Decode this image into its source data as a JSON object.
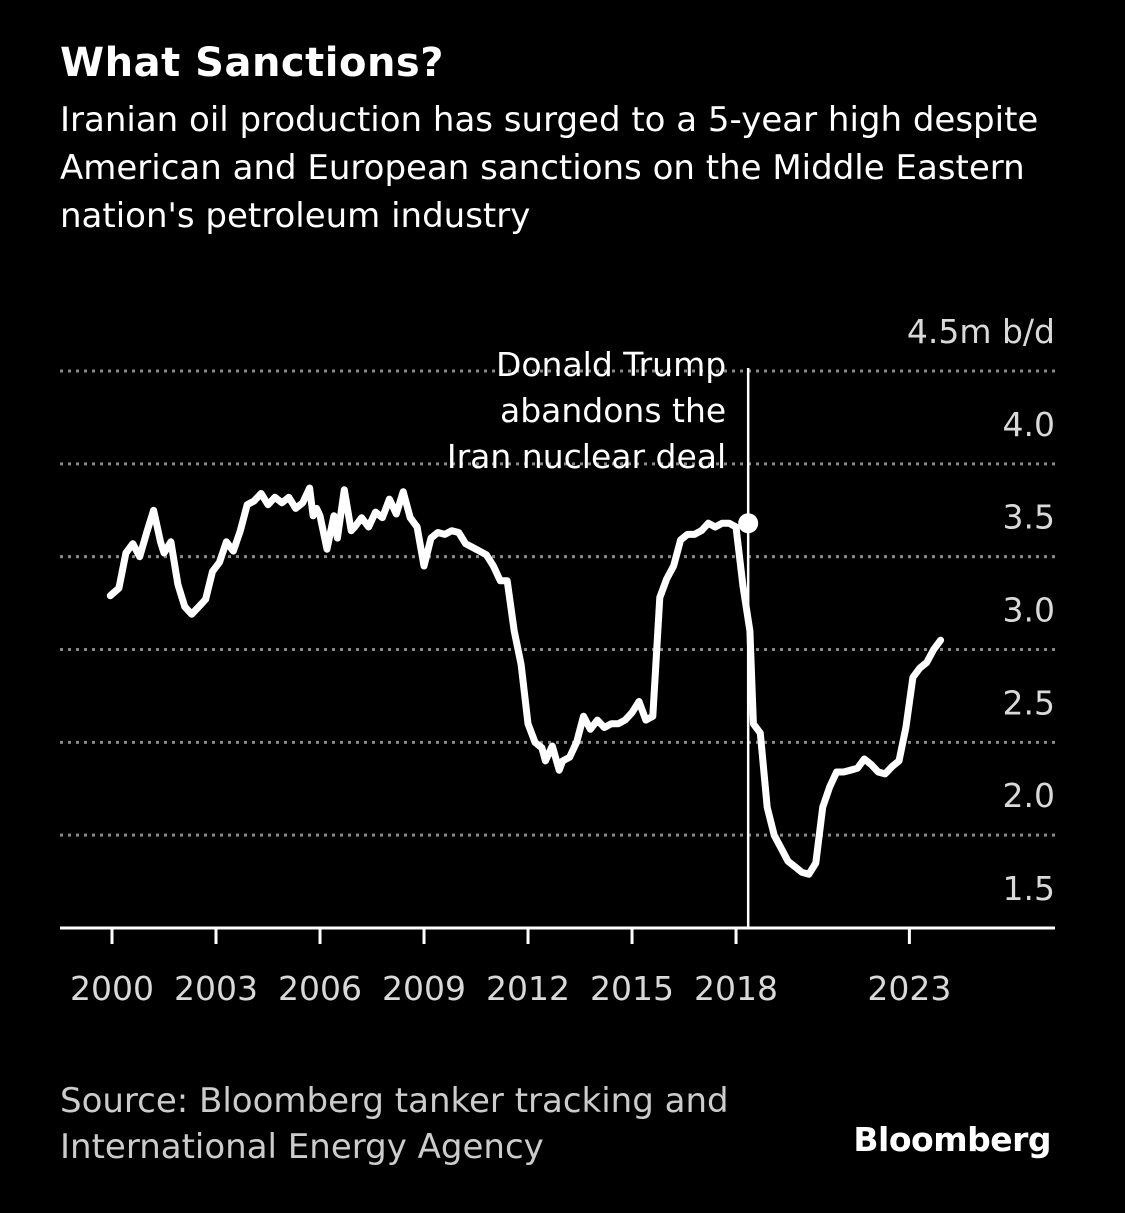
{
  "header": {
    "title": "What Sanctions?",
    "subtitle": "Iranian oil production has surged to a 5-year high despite American and European sanctions on the Middle Eastern nation's petroleum industry"
  },
  "footer": {
    "source": "Source: Bloomberg tanker tracking and International Energy Agency",
    "logo": "Bloomberg"
  },
  "colors": {
    "background": "#000000",
    "line": "#ffffff",
    "grid": "#888888"
  },
  "chart_data": {
    "type": "line",
    "title": "What Sanctions?",
    "unit_label": "4.5m b/d",
    "ylim": [
      1.5,
      4.5
    ],
    "yticks": [
      {
        "value": 4.5,
        "label": "4.5m b/d"
      },
      {
        "value": 4.0,
        "label": "4.0"
      },
      {
        "value": 3.5,
        "label": "3.5"
      },
      {
        "value": 3.0,
        "label": "3.0"
      },
      {
        "value": 2.5,
        "label": "2.5"
      },
      {
        "value": 2.0,
        "label": "2.0"
      },
      {
        "value": 1.5,
        "label": "1.5"
      }
    ],
    "xlim": [
      1998.5,
      2027.2
    ],
    "xticks": [
      {
        "value": 2000,
        "label": "2000"
      },
      {
        "value": 2003,
        "label": "2003"
      },
      {
        "value": 2006,
        "label": "2006"
      },
      {
        "value": 2009,
        "label": "2009"
      },
      {
        "value": 2012,
        "label": "2012"
      },
      {
        "value": 2015,
        "label": "2015"
      },
      {
        "value": 2018,
        "label": "2018"
      },
      {
        "value": 2023,
        "label": "2023"
      }
    ],
    "grid": true,
    "annotation": {
      "x": 2018.35,
      "marker_y": 3.68,
      "text": [
        "Donald Trump",
        "abandons the",
        "Iran nuclear deal"
      ]
    },
    "series": [
      {
        "x": [
          1999.95,
          2000.2,
          2000.4,
          2000.6,
          2000.8,
          2001.0,
          2001.2,
          2001.4,
          2001.5,
          2001.7,
          2001.9,
          2002.1,
          2002.3,
          2002.5,
          2002.7,
          2002.9,
          2003.1,
          2003.3,
          2003.5,
          2003.7,
          2003.9,
          2004.1,
          2004.3,
          2004.5,
          2004.7,
          2004.9,
          2005.1,
          2005.3,
          2005.5,
          2005.7,
          2005.8,
          2005.9,
          2006.0,
          2006.2,
          2006.4,
          2006.5,
          2006.7,
          2006.9,
          2007.0,
          2007.2,
          2007.4,
          2007.6,
          2007.8,
          2008.0,
          2008.2,
          2008.4,
          2008.6,
          2008.8,
          2009.0,
          2009.2,
          2009.4,
          2009.6,
          2009.8,
          2010.0,
          2010.2,
          2010.4,
          2010.6,
          2010.8,
          2011.0,
          2011.2,
          2011.4,
          2011.6,
          2011.8,
          2012.0,
          2012.2,
          2012.4,
          2012.5,
          2012.7,
          2012.9,
          2013.0,
          2013.2,
          2013.4,
          2013.6,
          2013.8,
          2014.0,
          2014.2,
          2014.4,
          2014.6,
          2014.8,
          2015.0,
          2015.2,
          2015.4,
          2015.6,
          2015.8,
          2016.0,
          2016.2,
          2016.4,
          2016.6,
          2016.8,
          2017.0,
          2017.2,
          2017.4,
          2017.6,
          2017.8,
          2018.0,
          2018.2,
          2018.4,
          2018.5,
          2018.7,
          2018.9,
          2019.1,
          2019.3,
          2019.5,
          2019.7,
          2019.9,
          2020.1,
          2020.3,
          2020.5,
          2020.7,
          2020.9,
          2021.1,
          2021.3,
          2021.5,
          2021.7,
          2021.9,
          2022.1,
          2022.3,
          2022.5,
          2022.7,
          2022.9,
          2023.1,
          2023.3,
          2023.5,
          2023.7,
          2023.9
        ],
        "values": [
          3.29,
          3.33,
          3.52,
          3.57,
          3.5,
          3.63,
          3.75,
          3.58,
          3.52,
          3.58,
          3.35,
          3.23,
          3.19,
          3.23,
          3.27,
          3.42,
          3.47,
          3.58,
          3.53,
          3.64,
          3.78,
          3.8,
          3.84,
          3.78,
          3.82,
          3.79,
          3.82,
          3.76,
          3.79,
          3.87,
          3.72,
          3.76,
          3.72,
          3.54,
          3.72,
          3.6,
          3.86,
          3.64,
          3.66,
          3.71,
          3.66,
          3.74,
          3.71,
          3.81,
          3.73,
          3.85,
          3.71,
          3.66,
          3.45,
          3.6,
          3.63,
          3.62,
          3.64,
          3.63,
          3.57,
          3.55,
          3.53,
          3.51,
          3.45,
          3.37,
          3.37,
          3.1,
          2.92,
          2.6,
          2.5,
          2.47,
          2.4,
          2.48,
          2.35,
          2.4,
          2.42,
          2.5,
          2.64,
          2.57,
          2.62,
          2.58,
          2.6,
          2.6,
          2.62,
          2.66,
          2.72,
          2.62,
          2.64,
          3.28,
          3.38,
          3.45,
          3.59,
          3.62,
          3.62,
          3.64,
          3.68,
          3.66,
          3.68,
          3.68,
          3.66,
          3.34,
          3.1,
          2.6,
          2.55,
          2.15,
          2.0,
          1.93,
          1.86,
          1.83,
          1.8,
          1.79,
          1.85,
          2.15,
          2.26,
          2.34,
          2.34,
          2.35,
          2.36,
          2.41,
          2.38,
          2.34,
          2.33,
          2.37,
          2.4,
          2.58,
          2.85,
          2.9,
          2.93,
          3.0,
          3.05
        ]
      }
    ]
  }
}
